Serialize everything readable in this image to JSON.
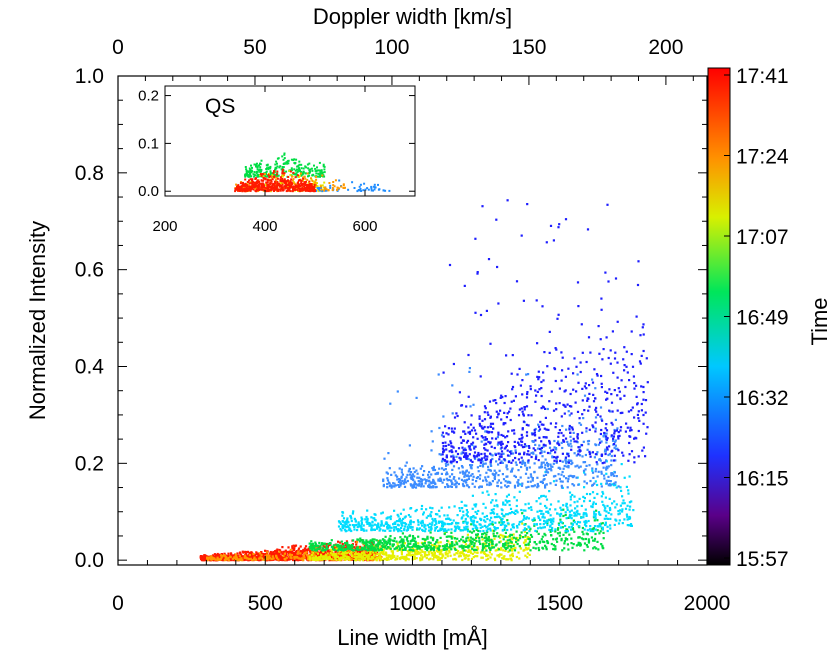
{
  "chart_data": {
    "type": "scatter",
    "title": "",
    "xlabel": "Line width [mÅ]",
    "ylabel": "Normalized Intensity",
    "top_xlabel": "Doppler width [km/s]",
    "xlim": [
      0,
      2000
    ],
    "ylim": [
      -0.01,
      1.0
    ],
    "top_xlim": [
      0,
      215
    ],
    "x_ticks": [
      "0",
      "500",
      "1000",
      "1500",
      "2000"
    ],
    "x_tick_values": [
      0,
      500,
      1000,
      1500,
      2000
    ],
    "y_ticks": [
      "0.0",
      "0.2",
      "0.4",
      "0.6",
      "0.8",
      "1.0"
    ],
    "y_tick_values": [
      0.0,
      0.2,
      0.4,
      0.6,
      0.8,
      1.0
    ],
    "top_x_ticks": [
      "0",
      "50",
      "100",
      "150",
      "200"
    ],
    "top_x_tick_values": [
      0,
      50,
      100,
      150,
      200
    ],
    "colorbar": {
      "label": "Time",
      "ticks": [
        "15:57",
        "16:15",
        "16:32",
        "16:49",
        "17:07",
        "17:24",
        "17:41"
      ],
      "colors": [
        "#000000",
        "#6a0090",
        "#1e32ff",
        "#00c8ff",
        "#00e65a",
        "#f5f000",
        "#ff8c00",
        "#ff0000"
      ]
    },
    "series": [
      {
        "name": "red (17:41)",
        "color": "#ff1a00",
        "points": 1300,
        "x_range": [
          280,
          880
        ],
        "y_range": [
          0.0,
          0.06
        ]
      },
      {
        "name": "orange",
        "color": "#ff9900",
        "points": 250,
        "x_range": [
          300,
          900
        ],
        "y_range": [
          0.0,
          0.05
        ]
      },
      {
        "name": "yellow",
        "color": "#e6f000",
        "points": 600,
        "x_range": [
          650,
          1400
        ],
        "y_range": [
          0.0,
          0.1
        ]
      },
      {
        "name": "green",
        "color": "#00dd44",
        "points": 700,
        "x_range": [
          650,
          1650
        ],
        "y_range": [
          0.02,
          0.14
        ]
      },
      {
        "name": "cyan",
        "color": "#00dcff",
        "points": 800,
        "x_range": [
          750,
          1750
        ],
        "y_range": [
          0.06,
          0.24
        ]
      },
      {
        "name": "light blue",
        "color": "#3c8cff",
        "points": 700,
        "x_range": [
          900,
          1700
        ],
        "y_range": [
          0.15,
          0.4
        ]
      },
      {
        "name": "blue",
        "color": "#1e1eff",
        "points": 700,
        "x_range": [
          1100,
          1800
        ],
        "y_range": [
          0.2,
          0.75
        ]
      }
    ],
    "inset": {
      "label": "QS",
      "xlim": [
        200,
        700
      ],
      "ylim": [
        -0.01,
        0.22
      ],
      "x_ticks": [
        "200",
        "400",
        "600"
      ],
      "x_tick_values": [
        200,
        400,
        600
      ],
      "y_ticks": [
        "0.0",
        "0.1",
        "0.2"
      ],
      "y_tick_values": [
        0.0,
        0.1,
        0.2
      ],
      "series": [
        {
          "name": "green",
          "color": "#00dd44",
          "points": 260,
          "x_range": [
            360,
            520
          ],
          "y_range": [
            0.03,
            0.1
          ]
        },
        {
          "name": "yellow",
          "color": "#e6e600",
          "points": 120,
          "x_range": [
            360,
            520
          ],
          "y_range": [
            0.0,
            0.07
          ]
        },
        {
          "name": "cyan/blue",
          "color": "#1e8cff",
          "points": 50,
          "x_range": [
            500,
            650
          ],
          "y_range": [
            0.0,
            0.03
          ]
        },
        {
          "name": "orange",
          "color": "#ff9900",
          "points": 120,
          "x_range": [
            340,
            560
          ],
          "y_range": [
            0.0,
            0.06
          ]
        },
        {
          "name": "red",
          "color": "#ff1a00",
          "points": 500,
          "x_range": [
            340,
            500
          ],
          "y_range": [
            0.0,
            0.06
          ]
        }
      ]
    }
  }
}
